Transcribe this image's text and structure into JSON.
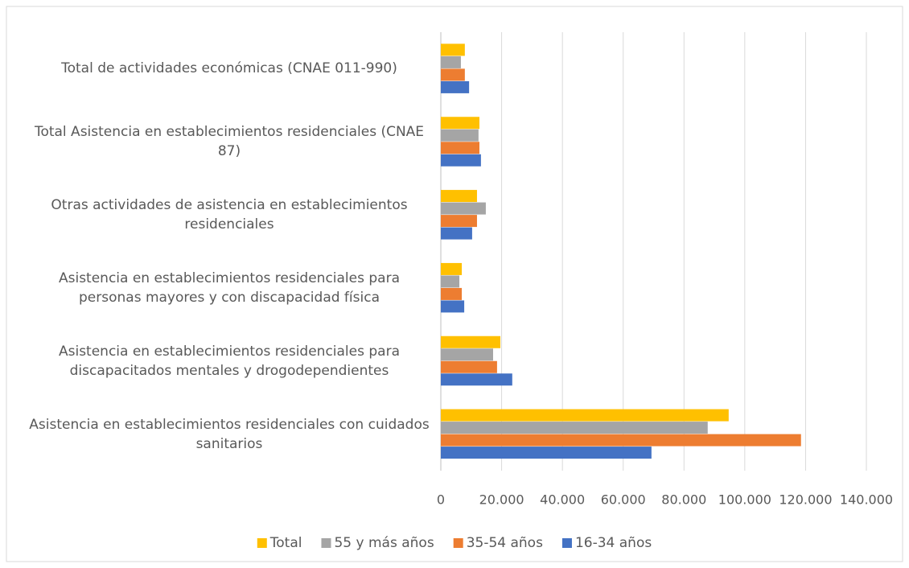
{
  "chart_data": {
    "type": "hbar",
    "categories": [
      "Total de actividades económicas (CNAE 011-990)",
      "Total Asistencia en establecimientos residenciales (CNAE 87)",
      "Otras actividades de asistencia en establecimientos residenciales",
      "Asistencia en establecimientos residenciales para personas mayores y con discapacidad física",
      "Asistencia en establecimientos residenciales para discapacitados mentales y drogodependientes",
      "Asistencia en establecimientos residenciales con cuidados sanitarios"
    ],
    "series": [
      {
        "name": "Total",
        "color": "#ffc000",
        "values": [
          7900,
          12700,
          11900,
          6900,
          19600,
          94700
        ]
      },
      {
        "name": "55 y más años",
        "color": "#a5a5a5",
        "values": [
          6600,
          12400,
          14800,
          6100,
          17200,
          87800
        ]
      },
      {
        "name": "35-54 años",
        "color": "#ed7d31",
        "values": [
          7900,
          12700,
          11900,
          6900,
          18500,
          118500
        ]
      },
      {
        "name": "16-34 años",
        "color": "#4472c4",
        "values": [
          9300,
          13200,
          10300,
          7700,
          23500,
          69300
        ]
      }
    ],
    "xlim": [
      0,
      140000
    ],
    "xticks": [
      0,
      {
        "value": 20000,
        "label": "20.000"
      },
      {
        "value": 40000,
        "label": "40.000"
      },
      {
        "value": 60000,
        "label": "60.000"
      },
      {
        "value": 80000,
        "label": "80.000"
      },
      {
        "value": 100000,
        "label": "100.000"
      },
      {
        "value": 120000,
        "label": "120.000"
      },
      {
        "value": 140000,
        "label": "140.000"
      }
    ],
    "grid": true,
    "legend": "bottom"
  }
}
